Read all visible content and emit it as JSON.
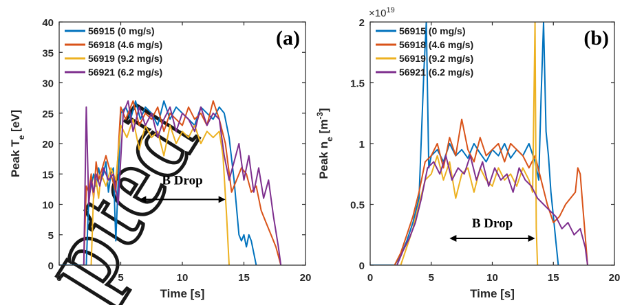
{
  "chart_data": [
    {
      "type": "line",
      "panel_label": "(a)",
      "xlabel": "Time [s]",
      "ylabel_main": "Peak T",
      "ylabel_sub": "e",
      "ylabel_unit": " [eV]",
      "xlim": [
        0,
        20
      ],
      "ylim": [
        0,
        40
      ],
      "xticks": [
        "0",
        "5",
        "10",
        "15",
        "20"
      ],
      "yticks": [
        "0",
        "5",
        "10",
        "15",
        "20",
        "25",
        "30",
        "35",
        "40"
      ],
      "annotation": "B Drop",
      "arrow": [
        6.5,
        13.5
      ],
      "arrow_y": 10.8,
      "annotation_x": 10,
      "annotation_y": 13.3,
      "series": [
        {
          "name": "56915 (0 mg/s)",
          "color": "#0072BD",
          "x": [
            0,
            2.2,
            2.4,
            2.6,
            2.8,
            3.0,
            3.2,
            3.4,
            3.6,
            3.8,
            4.0,
            4.2,
            4.4,
            4.6,
            4.8,
            5.0,
            5.4,
            5.8,
            6.2,
            6.6,
            7.0,
            7.5,
            8.0,
            8.5,
            9.0,
            9.5,
            10.0,
            10.5,
            11.0,
            11.5,
            12.0,
            12.5,
            13.0,
            13.4,
            13.8,
            14.2,
            14.6,
            14.8,
            15.0,
            15.2,
            15.4,
            15.6,
            15.8,
            16.0
          ],
          "y": [
            0,
            0,
            11,
            13,
            15,
            13,
            16,
            14,
            15,
            17,
            12,
            15,
            16,
            4,
            14,
            25,
            26,
            24,
            27,
            24,
            26,
            25,
            23,
            27,
            24,
            26,
            25,
            24,
            23,
            26,
            25,
            24,
            26,
            25,
            21,
            14,
            5,
            4,
            5,
            3,
            5,
            4,
            2,
            0
          ]
        },
        {
          "name": "56918 (4.6 mg/s)",
          "color": "#D95319",
          "x": [
            2.0,
            2.2,
            2.4,
            2.6,
            2.8,
            3.0,
            3.2,
            3.5,
            3.8,
            4.2,
            4.6,
            5.0,
            5.4,
            6.0,
            6.5,
            7.0,
            7.5,
            8.0,
            8.5,
            9.0,
            9.5,
            10.0,
            10.5,
            11.0,
            11.5,
            12.0,
            12.5,
            13.0,
            13.5,
            14.0,
            14.4,
            14.8,
            15.2,
            15.6,
            16.0,
            16.4,
            16.8,
            17.2,
            17.6,
            18.0
          ],
          "y": [
            0,
            13,
            12,
            15,
            11,
            17,
            14,
            16,
            18,
            15,
            12,
            26,
            24,
            27,
            23,
            25,
            24,
            26,
            22,
            25,
            24,
            23,
            26,
            24,
            25,
            23,
            27,
            24,
            20,
            12,
            14,
            16,
            15,
            12,
            13,
            9,
            7,
            5,
            3,
            0
          ]
        },
        {
          "name": "56919 (9.2 mg/s)",
          "color": "#EDB120",
          "x": [
            2.6,
            2.8,
            3.0,
            3.2,
            3.4,
            3.8,
            4.2,
            4.6,
            5.0,
            5.5,
            6.0,
            6.5,
            7.0,
            7.5,
            8.0,
            8.5,
            9.0,
            9.5,
            10.0,
            10.5,
            11.0,
            11.5,
            12.0,
            12.5,
            13.0,
            13.3,
            13.6,
            13.8
          ],
          "y": [
            0,
            12,
            14,
            11,
            15,
            13,
            16,
            14,
            23,
            21,
            24,
            19,
            23,
            21,
            22,
            18,
            23,
            20,
            22,
            21,
            23,
            20,
            22,
            21,
            22,
            18,
            8,
            0
          ]
        },
        {
          "name": "56921 (6.2 mg/s)",
          "color": "#7E2F8E",
          "x": [
            2.0,
            2.2,
            2.4,
            2.6,
            2.8,
            3.0,
            3.3,
            3.6,
            4.0,
            4.4,
            4.8,
            5.2,
            5.6,
            6.0,
            6.5,
            7.0,
            7.5,
            8.0,
            8.5,
            9.0,
            9.5,
            10.0,
            10.5,
            11.0,
            11.5,
            12.0,
            12.5,
            13.0,
            13.4,
            13.8,
            14.2,
            14.6,
            15.0,
            15.4,
            15.8,
            16.2,
            16.6,
            17.0,
            17.4,
            17.8,
            18.0
          ],
          "y": [
            0,
            26,
            10,
            14,
            12,
            15,
            13,
            16,
            14,
            15,
            10,
            25,
            27,
            22,
            26,
            23,
            25,
            21,
            24,
            26,
            22,
            25,
            24,
            22,
            26,
            23,
            25,
            24,
            18,
            14,
            17,
            20,
            14,
            18,
            12,
            16,
            11,
            14,
            8,
            3,
            0
          ]
        }
      ]
    },
    {
      "type": "line",
      "panel_label": "(b)",
      "xlabel": "Time [s]",
      "ylabel_main": "Peak n",
      "ylabel_sub": "e",
      "ylabel_unit": " [m",
      "ylabel_sup": "-3",
      "ylabel_close": "]",
      "exponent_label": "×10",
      "exponent_sup": "19",
      "xlim": [
        0,
        20
      ],
      "ylim": [
        0,
        2
      ],
      "xticks": [
        "0",
        "5",
        "10",
        "15",
        "20"
      ],
      "yticks": [
        "0",
        "0.5",
        "1",
        "1.5",
        "2"
      ],
      "annotation": "B Drop",
      "arrow": [
        6.5,
        13.5
      ],
      "arrow_y": 0.22,
      "annotation_x": 10,
      "annotation_y": 0.31,
      "series": [
        {
          "name": "56915 (0 mg/s)",
          "color": "#0072BD",
          "x": [
            0,
            2.0,
            2.5,
            3.0,
            3.5,
            4.0,
            4.4,
            4.6,
            4.8,
            5.0,
            5.5,
            6.0,
            6.5,
            7.0,
            7.5,
            8.0,
            8.5,
            9.0,
            9.5,
            10.0,
            10.5,
            11.0,
            11.5,
            12.0,
            12.5,
            13.0,
            13.5,
            13.8,
            14.0,
            14.2,
            14.4,
            14.6,
            14.8,
            15.0,
            15.2,
            15.4
          ],
          "y": [
            0,
            0,
            0.08,
            0.2,
            0.35,
            0.55,
            1.6,
            2.0,
            0.8,
            0.9,
            0.95,
            0.85,
            1.0,
            0.9,
            0.95,
            0.88,
            1.0,
            0.92,
            0.85,
            0.95,
            0.9,
            1.0,
            0.88,
            0.95,
            0.9,
            1.0,
            0.85,
            0.7,
            1.4,
            2.0,
            1.1,
            0.9,
            0.6,
            0.4,
            0.2,
            0
          ]
        },
        {
          "name": "56918 (4.6 mg/s)",
          "color": "#D95319",
          "x": [
            2.0,
            2.5,
            3.0,
            3.5,
            4.0,
            4.5,
            5.0,
            5.5,
            6.0,
            6.5,
            7.0,
            7.5,
            8.0,
            8.5,
            9.0,
            9.5,
            10.0,
            10.5,
            11.0,
            11.5,
            12.0,
            12.5,
            13.0,
            13.5,
            14.0,
            14.5,
            15.0,
            15.5,
            16.0,
            16.4,
            16.8,
            17.0,
            17.2,
            17.4,
            17.6,
            17.8
          ],
          "y": [
            0,
            0.1,
            0.25,
            0.4,
            0.6,
            0.85,
            0.9,
            1.0,
            0.8,
            1.05,
            0.9,
            1.2,
            0.95,
            0.85,
            1.05,
            0.9,
            0.95,
            1.0,
            0.85,
            1.0,
            0.95,
            0.9,
            0.8,
            0.9,
            0.7,
            0.5,
            0.35,
            0.4,
            0.5,
            0.55,
            0.6,
            0.8,
            0.75,
            0.5,
            0.25,
            0
          ]
        },
        {
          "name": "56919 (9.2 mg/s)",
          "color": "#EDB120",
          "x": [
            2.5,
            3.0,
            3.5,
            4.0,
            4.5,
            5.0,
            5.5,
            6.0,
            6.5,
            7.0,
            7.5,
            8.0,
            8.5,
            9.0,
            9.5,
            10.0,
            10.5,
            11.0,
            11.5,
            12.0,
            12.5,
            13.0,
            13.3,
            13.5,
            13.6,
            13.7
          ],
          "y": [
            0,
            0.15,
            0.3,
            0.5,
            0.7,
            0.75,
            0.9,
            0.7,
            0.85,
            0.55,
            0.75,
            0.8,
            0.6,
            0.8,
            0.7,
            0.65,
            0.8,
            0.7,
            0.75,
            0.65,
            0.8,
            0.7,
            0.6,
            2.0,
            0.3,
            0
          ]
        },
        {
          "name": "56921 (6.2 mg/s)",
          "color": "#7E2F8E",
          "x": [
            2.2,
            2.7,
            3.2,
            3.7,
            4.2,
            4.7,
            5.2,
            5.7,
            6.2,
            6.7,
            7.2,
            7.7,
            8.2,
            8.7,
            9.2,
            9.7,
            10.2,
            10.7,
            11.2,
            11.7,
            12.2,
            12.7,
            13.2,
            13.7,
            14.2,
            14.7,
            15.2,
            15.7,
            16.2,
            16.7,
            17.2,
            17.6,
            17.8
          ],
          "y": [
            0,
            0.12,
            0.22,
            0.35,
            0.55,
            0.8,
            0.85,
            0.75,
            0.9,
            0.7,
            0.8,
            0.75,
            0.9,
            0.7,
            0.85,
            0.65,
            0.8,
            0.7,
            0.75,
            0.6,
            0.8,
            0.7,
            0.65,
            0.55,
            0.5,
            0.45,
            0.4,
            0.3,
            0.35,
            0.25,
            0.3,
            0.15,
            0
          ]
        }
      ]
    }
  ]
}
